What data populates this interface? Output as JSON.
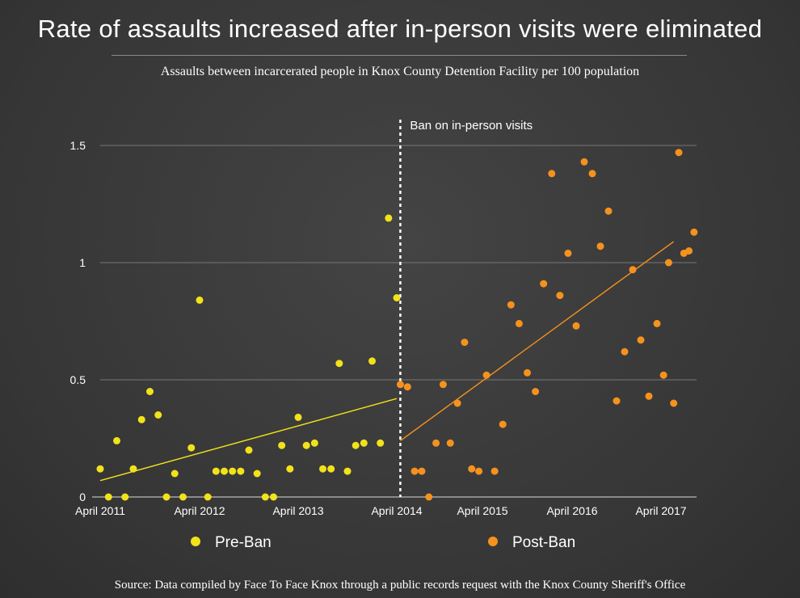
{
  "header": {
    "title": "Rate of assaults increased after in-person visits were eliminated",
    "subtitle": "Assaults between incarcerated people in Knox County Detention Facility per 100 population"
  },
  "footer": {
    "source": "Source: Data compiled by Face To Face Knox through a public records request with the Knox County Sheriff's Office"
  },
  "colors": {
    "pre_ban": "#f2e21a",
    "post_ban": "#f5921e",
    "grid": "#777777",
    "axis_text": "#ffffff"
  },
  "chart_data": {
    "type": "scatter",
    "title": "Rate of assaults increased after in-person visits were eliminated",
    "subtitle": "Assaults between incarcerated people in Knox County Detention Facility per 100 population",
    "xlabel": "",
    "ylabel": "",
    "x_unit": "months since April 2011",
    "xlim": [
      0,
      73
    ],
    "ylim": [
      0,
      1.6
    ],
    "grid": true,
    "legend_position": "bottom",
    "y_ticks": [
      {
        "value": 0,
        "label": "0"
      },
      {
        "value": 0.5,
        "label": "0.5"
      },
      {
        "value": 1,
        "label": "1"
      },
      {
        "value": 1.5,
        "label": "1.5"
      }
    ],
    "x_ticks": [
      {
        "value": 0,
        "label": "April 2011"
      },
      {
        "value": 12,
        "label": "April 2012"
      },
      {
        "value": 24,
        "label": "April 2013"
      },
      {
        "value": 36,
        "label": "April 2014"
      },
      {
        "value": 48,
        "label": "April 2015"
      },
      {
        "value": 59,
        "label": "April 2016"
      },
      {
        "value": 70,
        "label": "April 2017"
      }
    ],
    "annotation": {
      "x": 36.5,
      "label": "Ban on in-person visits"
    },
    "series": [
      {
        "name": "Pre-Ban",
        "color": "#f2e21a",
        "trendline": [
          {
            "x": 0,
            "y": 0.07
          },
          {
            "x": 36,
            "y": 0.42
          }
        ],
        "points": [
          {
            "x": 0,
            "y": 0.12
          },
          {
            "x": 1,
            "y": 0
          },
          {
            "x": 2,
            "y": 0.24
          },
          {
            "x": 3,
            "y": 0
          },
          {
            "x": 4,
            "y": 0.12
          },
          {
            "x": 5,
            "y": 0.33
          },
          {
            "x": 6,
            "y": 0.45
          },
          {
            "x": 7,
            "y": 0.35
          },
          {
            "x": 8,
            "y": 0
          },
          {
            "x": 9,
            "y": 0.1
          },
          {
            "x": 10,
            "y": 0
          },
          {
            "x": 11,
            "y": 0.21
          },
          {
            "x": 12,
            "y": 0.84
          },
          {
            "x": 13,
            "y": 0
          },
          {
            "x": 14,
            "y": 0.11
          },
          {
            "x": 15,
            "y": 0.11
          },
          {
            "x": 16,
            "y": 0.11
          },
          {
            "x": 17,
            "y": 0.11
          },
          {
            "x": 18,
            "y": 0.2
          },
          {
            "x": 19,
            "y": 0.1
          },
          {
            "x": 20,
            "y": 0
          },
          {
            "x": 21,
            "y": 0
          },
          {
            "x": 22,
            "y": 0.22
          },
          {
            "x": 23,
            "y": 0.12
          },
          {
            "x": 24,
            "y": 0.34
          },
          {
            "x": 25,
            "y": 0.22
          },
          {
            "x": 26,
            "y": 0.23
          },
          {
            "x": 27,
            "y": 0.12
          },
          {
            "x": 28,
            "y": 0.12
          },
          {
            "x": 29,
            "y": 0.57
          },
          {
            "x": 30,
            "y": 0.11
          },
          {
            "x": 31,
            "y": 0.22
          },
          {
            "x": 32,
            "y": 0.23
          },
          {
            "x": 33,
            "y": 0.58
          },
          {
            "x": 34,
            "y": 0.23
          },
          {
            "x": 35,
            "y": 1.19
          },
          {
            "x": 36,
            "y": 0.85
          }
        ]
      },
      {
        "name": "Post-Ban",
        "color": "#f5921e",
        "trendline": [
          {
            "x": 36.5,
            "y": 0.24
          },
          {
            "x": 72.5,
            "y": 1.09
          }
        ],
        "points": [
          {
            "x": 36.5,
            "y": 0.48
          },
          {
            "x": 37.5,
            "y": 0.47
          },
          {
            "x": 38.5,
            "y": 0.11
          },
          {
            "x": 39.5,
            "y": 0.11
          },
          {
            "x": 40.5,
            "y": 0
          },
          {
            "x": 41.5,
            "y": 0.23
          },
          {
            "x": 42.5,
            "y": 0.48
          },
          {
            "x": 43.5,
            "y": 0.23
          },
          {
            "x": 44.5,
            "y": 0.4
          },
          {
            "x": 45.5,
            "y": 0.66
          },
          {
            "x": 46.5,
            "y": 0.12
          },
          {
            "x": 47.5,
            "y": 0.11
          },
          {
            "x": 48.5,
            "y": 0.52
          },
          {
            "x": 49.5,
            "y": 0.11
          },
          {
            "x": 50.5,
            "y": 0.31
          },
          {
            "x": 51.5,
            "y": 0.82
          },
          {
            "x": 52.5,
            "y": 0.74
          },
          {
            "x": 53.5,
            "y": 0.53
          },
          {
            "x": 54.5,
            "y": 0.45
          },
          {
            "x": 55.5,
            "y": 0.91
          },
          {
            "x": 56.5,
            "y": 1.38
          },
          {
            "x": 57.5,
            "y": 0.86
          },
          {
            "x": 58.5,
            "y": 1.04
          },
          {
            "x": 59.5,
            "y": 0.73
          },
          {
            "x": 60.5,
            "y": 1.43
          },
          {
            "x": 61.5,
            "y": 1.38
          },
          {
            "x": 62.5,
            "y": 1.07
          },
          {
            "x": 63.5,
            "y": 1.22
          },
          {
            "x": 64.5,
            "y": 0.41
          },
          {
            "x": 65.5,
            "y": 0.62
          },
          {
            "x": 66.5,
            "y": 0.97
          },
          {
            "x": 67.5,
            "y": 0.67
          },
          {
            "x": 68.5,
            "y": 0.43
          },
          {
            "x": 69.5,
            "y": 0.74
          },
          {
            "x": 70.5,
            "y": 0.52
          },
          {
            "x": 71.5,
            "y": 1.0
          },
          {
            "x": 72.5,
            "y": 0.4
          },
          {
            "x": 73.5,
            "y": 1.47
          },
          {
            "x": 74.5,
            "y": 1.04
          },
          {
            "x": 75.5,
            "y": 1.05
          },
          {
            "x": 76.5,
            "y": 1.13
          }
        ]
      }
    ]
  }
}
